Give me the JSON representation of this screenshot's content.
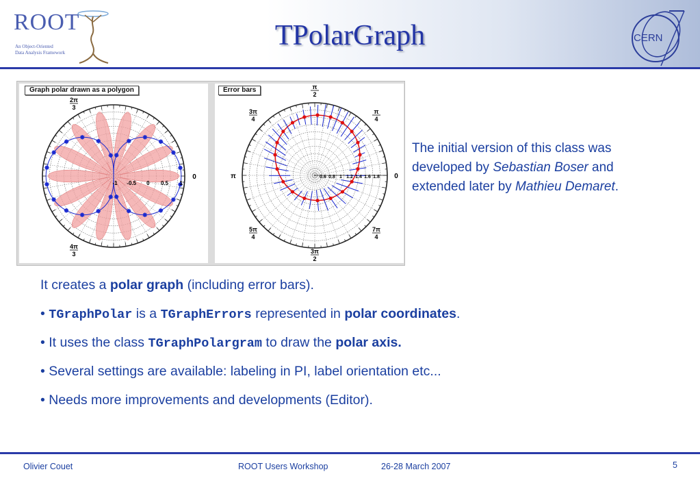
{
  "header": {
    "title": "TPolarGraph",
    "root_logo_word": "ROOT",
    "root_logo_tagline": [
      "An Object-Oriented",
      "Data Analysis Framework"
    ],
    "cern_logo_word": "CERN"
  },
  "figures": [
    {
      "panel_title": "Graph polar drawn as a polygon",
      "angle_labels": [
        {
          "num": "2π",
          "den": "3"
        },
        {
          "num": "4π",
          "den": "3"
        },
        {
          "num": "",
          "den": "",
          "text": "0"
        }
      ],
      "radial_labels": [
        "-1",
        "-0.5",
        "0",
        "0.5",
        "1"
      ]
    },
    {
      "panel_title": "Error bars",
      "angle_labels": [
        {
          "num": "π",
          "den": "2"
        },
        {
          "num": "3π",
          "den": "4"
        },
        {
          "num": "π",
          "den": "4"
        },
        {
          "num": "",
          "den": "",
          "text": "π"
        },
        {
          "num": "",
          "den": "",
          "text": "0"
        },
        {
          "num": "5π",
          "den": "4"
        },
        {
          "num": "7π",
          "den": "4"
        },
        {
          "num": "3π",
          "den": "2"
        }
      ],
      "radial_labels": [
        "0.6",
        "0.8",
        "1",
        "1.2",
        "1.4",
        "1.6",
        "1.8"
      ]
    }
  ],
  "credit": {
    "line1": "The initial  version of this class was",
    "line2_pre": "developed by ",
    "line2_name": "Sebastian Boser",
    "line2_post": " and",
    "line3_pre": "extended later by ",
    "line3_name": "Mathieu Demaret",
    "line3_post": "."
  },
  "bullets": {
    "b1_pre": "It creates a ",
    "b1_bold": "polar graph",
    "b1_post": " (including error bars).",
    "b2_dot": "• ",
    "b2_code1": "TGraphPolar",
    "b2_mid": " is a ",
    "b2_code2": "TGraphErrors",
    "b2_mid2": " represented in ",
    "b2_bold": "polar coordinates",
    "b2_post": ".",
    "b3_pre": "• It uses the class ",
    "b3_code": "TGraphPolargram",
    "b3_mid": " to draw the ",
    "b3_bold": "polar axis.",
    "b4": "• Several settings are available: labeling in PI, label orientation etc...",
    "b5": "• Needs more improvements and developments (Editor)."
  },
  "footer": {
    "author": "Olivier Couet",
    "event": "ROOT Users Workshop",
    "date": "26-28 March 2007",
    "page": "5"
  },
  "colors": {
    "title": "#2335a6",
    "text": "#1b3fa0",
    "rule": "#2a3aa8",
    "polygon_fill": "#f2a0a0",
    "marker_blue": "#1a2ad0",
    "marker_red": "#e01010"
  }
}
